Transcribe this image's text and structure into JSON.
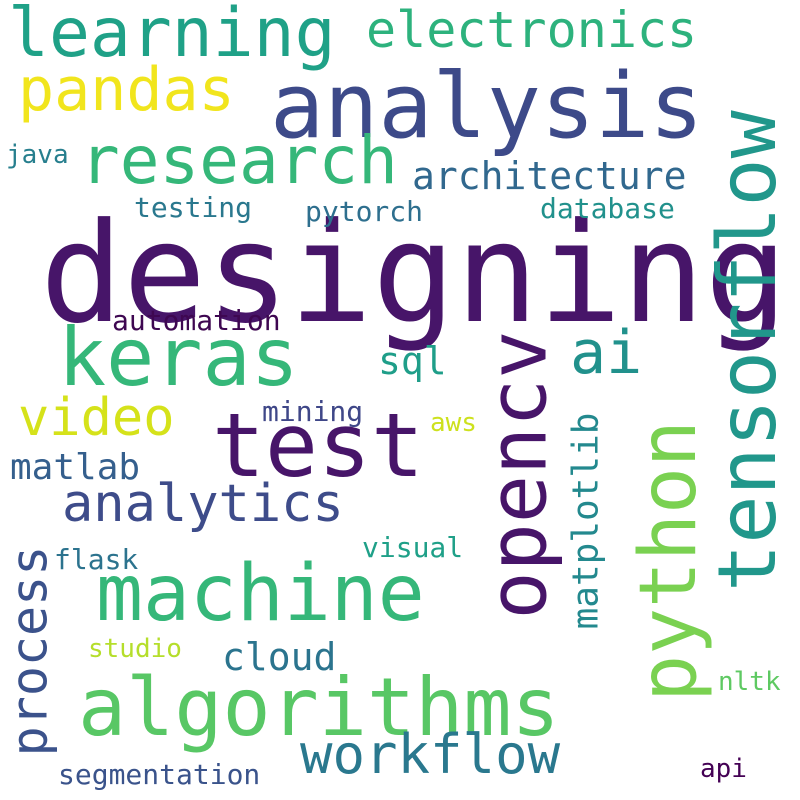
{
  "words": [
    {
      "text": "designing",
      "color": "#471569",
      "weight": 1.0
    },
    {
      "text": "analysis",
      "color": "#3d4a89",
      "weight": 0.72
    },
    {
      "text": "tensorflow",
      "color": "#21978b",
      "weight": 0.66
    },
    {
      "text": "opencv",
      "color": "#471569",
      "weight": 0.62
    },
    {
      "text": "python",
      "color": "#7ad151",
      "weight": 0.6
    },
    {
      "text": "algorithms",
      "color": "#58c765",
      "weight": 0.64
    },
    {
      "text": "machine",
      "color": "#35b779",
      "weight": 0.6
    },
    {
      "text": "test",
      "color": "#471569",
      "weight": 0.58
    },
    {
      "text": "keras",
      "color": "#35b779",
      "weight": 0.56
    },
    {
      "text": "learning",
      "color": "#1fa187",
      "weight": 0.52
    },
    {
      "text": "research",
      "color": "#35b779",
      "weight": 0.48
    },
    {
      "text": "pandas",
      "color": "#f1e51d",
      "weight": 0.46
    },
    {
      "text": "electronics",
      "color": "#2db27d",
      "weight": 0.4
    },
    {
      "text": "ai",
      "color": "#21918c",
      "weight": 0.46
    },
    {
      "text": "video",
      "color": "#d5e21a",
      "weight": 0.4
    },
    {
      "text": "analytics",
      "color": "#3e4c8a",
      "weight": 0.4
    },
    {
      "text": "workflow",
      "color": "#2a788e",
      "weight": 0.4
    },
    {
      "text": "process",
      "color": "#3b528b",
      "weight": 0.38
    },
    {
      "text": "architecture",
      "color": "#31688e",
      "weight": 0.3
    },
    {
      "text": "matplotlib",
      "color": "#23898e",
      "weight": 0.28
    },
    {
      "text": "cloud",
      "color": "#2b748e",
      "weight": 0.28
    },
    {
      "text": "matlab",
      "color": "#355f8d",
      "weight": 0.28
    },
    {
      "text": "sql",
      "color": "#1f9e89",
      "weight": 0.26
    },
    {
      "text": "automation",
      "color": "#3e0751",
      "weight": 0.22
    },
    {
      "text": "pytorch",
      "color": "#2e6f8e",
      "weight": 0.22
    },
    {
      "text": "testing",
      "color": "#2a788e",
      "weight": 0.22
    },
    {
      "text": "database",
      "color": "#21918c",
      "weight": 0.22
    },
    {
      "text": "mining",
      "color": "#3f4788",
      "weight": 0.22
    },
    {
      "text": "visual",
      "color": "#1fa088",
      "weight": 0.22
    },
    {
      "text": "flask",
      "color": "#2c738e",
      "weight": 0.22
    },
    {
      "text": "segmentation",
      "color": "#3a538b",
      "weight": 0.22
    },
    {
      "text": "java",
      "color": "#277f8e",
      "weight": 0.2
    },
    {
      "text": "aws",
      "color": "#cde11d",
      "weight": 0.2
    },
    {
      "text": "studio",
      "color": "#b5de2b",
      "weight": 0.2
    },
    {
      "text": "nltk",
      "color": "#5ec962",
      "weight": 0.2
    },
    {
      "text": "api",
      "color": "#440154",
      "weight": 0.2
    }
  ]
}
